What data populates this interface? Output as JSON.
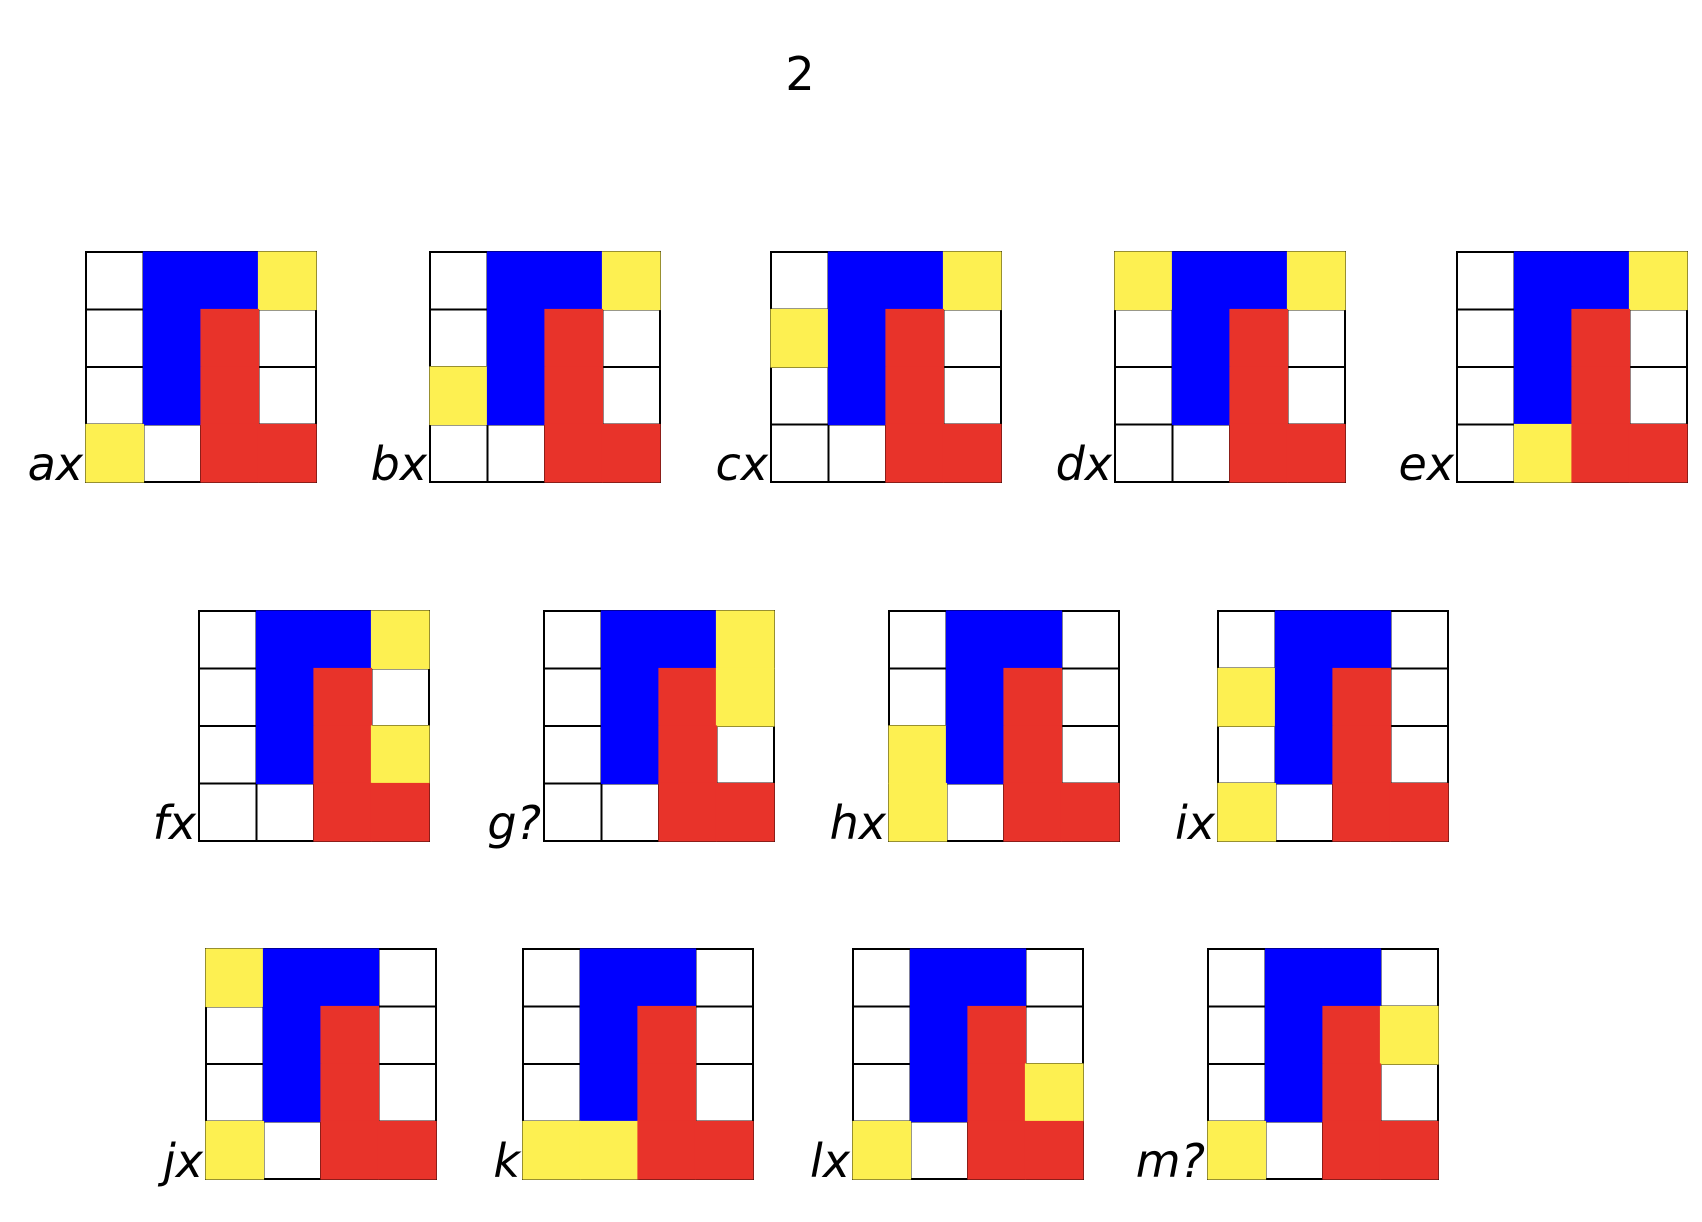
{
  "title": "2",
  "colors": {
    "blue": "#0000ff",
    "red": "#e8332a",
    "yellow": "#fdf051",
    "grid": "#000000",
    "empty": "#ffffff"
  },
  "base_pattern": {
    "blue_cells": [
      [
        0,
        1
      ],
      [
        0,
        2
      ],
      [
        1,
        1
      ],
      [
        2,
        1
      ]
    ],
    "red_cells": [
      [
        1,
        2
      ],
      [
        2,
        2
      ],
      [
        3,
        2
      ],
      [
        3,
        3
      ]
    ]
  },
  "grids": [
    {
      "label": "ax",
      "yellow_cells": [
        [
          0,
          3
        ],
        [
          3,
          0
        ]
      ]
    },
    {
      "label": "bx",
      "yellow_cells": [
        [
          0,
          3
        ],
        [
          2,
          0
        ]
      ]
    },
    {
      "label": "cx",
      "yellow_cells": [
        [
          0,
          3
        ],
        [
          1,
          0
        ]
      ]
    },
    {
      "label": "dx",
      "yellow_cells": [
        [
          0,
          3
        ],
        [
          0,
          0
        ]
      ]
    },
    {
      "label": "ex",
      "yellow_cells": [
        [
          0,
          3
        ],
        [
          3,
          1
        ]
      ]
    },
    {
      "label": "fx",
      "yellow_cells": [
        [
          0,
          3
        ],
        [
          2,
          3
        ]
      ]
    },
    {
      "label": "g?",
      "yellow_cells": [
        [
          0,
          3
        ],
        [
          1,
          3
        ]
      ]
    },
    {
      "label": "hx",
      "yellow_cells": [
        [
          2,
          0
        ],
        [
          3,
          0
        ]
      ]
    },
    {
      "label": "ix",
      "yellow_cells": [
        [
          1,
          0
        ],
        [
          3,
          0
        ]
      ]
    },
    {
      "label": "jx",
      "yellow_cells": [
        [
          0,
          0
        ],
        [
          3,
          0
        ]
      ]
    },
    {
      "label": "k",
      "yellow_cells": [
        [
          3,
          0
        ],
        [
          3,
          1
        ]
      ]
    },
    {
      "label": "lx",
      "yellow_cells": [
        [
          3,
          0
        ],
        [
          2,
          3
        ]
      ]
    },
    {
      "label": "m?",
      "yellow_cells": [
        [
          3,
          0
        ],
        [
          1,
          3
        ]
      ]
    }
  ]
}
